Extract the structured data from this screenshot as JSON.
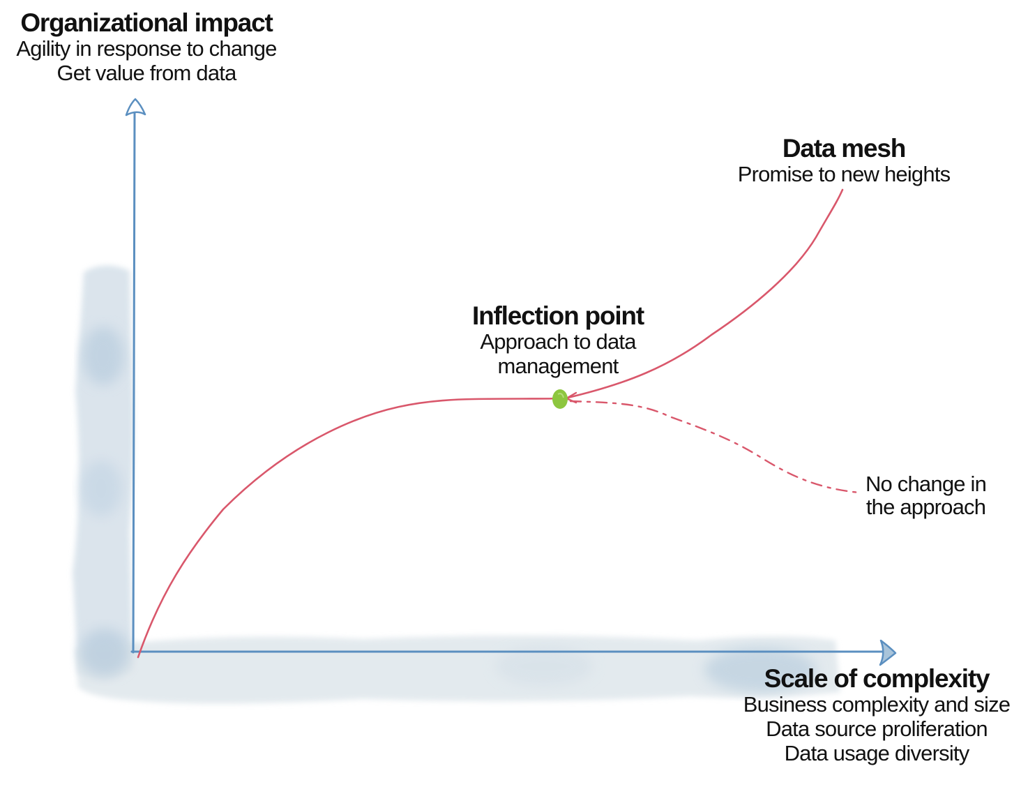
{
  "y_axis": {
    "title": "Organizational impact",
    "lines": [
      "Agility in response to change",
      "Get value from data"
    ]
  },
  "x_axis": {
    "title": "Scale of complexity",
    "lines": [
      "Business complexity and size",
      "Data source proliferation",
      "Data usage diversity"
    ]
  },
  "data_mesh": {
    "title": "Data mesh",
    "subtitle": "Promise to new heights"
  },
  "inflection_point": {
    "title": "Inflection point",
    "lines": [
      "Approach to data",
      "management"
    ]
  },
  "no_change": {
    "lines": [
      "No change in",
      "the approach"
    ]
  },
  "colors": {
    "axis": "#5b8fc0",
    "curve": "#d9576b",
    "point": "#8dc63f",
    "watercolor": "#b9cfe0"
  }
}
